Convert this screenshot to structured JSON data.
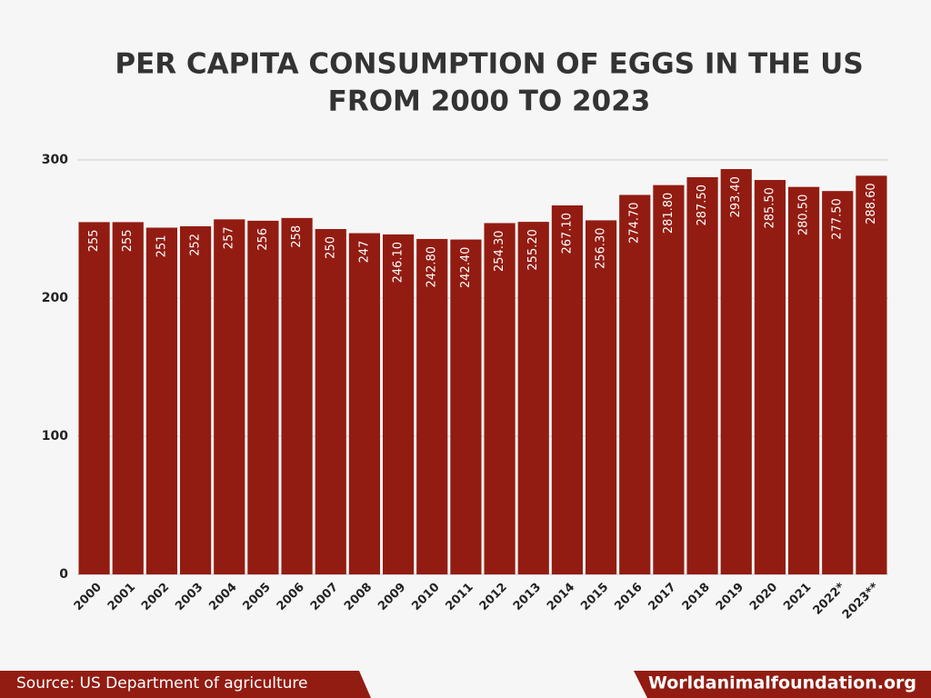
{
  "chart_data": {
    "type": "bar",
    "title": [
      "PER CAPITA CONSUMPTION OF EGGS IN THE US",
      "FROM 2000 TO 2023"
    ],
    "categories": [
      "2000",
      "2001",
      "2002",
      "2003",
      "2004",
      "2005",
      "2006",
      "2007",
      "2008",
      "2009",
      "2010",
      "2011",
      "2012",
      "2013",
      "2014",
      "2015",
      "2016",
      "2017",
      "2018",
      "2019",
      "2020",
      "2021",
      "2022*",
      "2023**"
    ],
    "values": [
      255,
      255,
      251,
      252,
      257,
      256,
      258,
      250,
      247,
      246.1,
      242.8,
      242.4,
      254.3,
      255.2,
      267.1,
      256.3,
      274.7,
      281.8,
      287.5,
      293.4,
      285.5,
      280.5,
      277.5,
      288.6
    ],
    "value_labels": [
      "255",
      "255",
      "251",
      "252",
      "257",
      "256",
      "258",
      "250",
      "247",
      "246.10",
      "242.80",
      "242.40",
      "254.30",
      "255.20",
      "267.10",
      "256.30",
      "274.70",
      "281.80",
      "287.50",
      "293.40",
      "285.50",
      "280.50",
      "277.50",
      "288.60"
    ],
    "color": "#921c12",
    "ylim": [
      0,
      300
    ],
    "yticks": [
      0,
      100,
      200,
      300
    ],
    "grid": true
  },
  "footer": {
    "source": "Source: US Department of agriculture",
    "website": "Worldanimalfoundation.org"
  }
}
